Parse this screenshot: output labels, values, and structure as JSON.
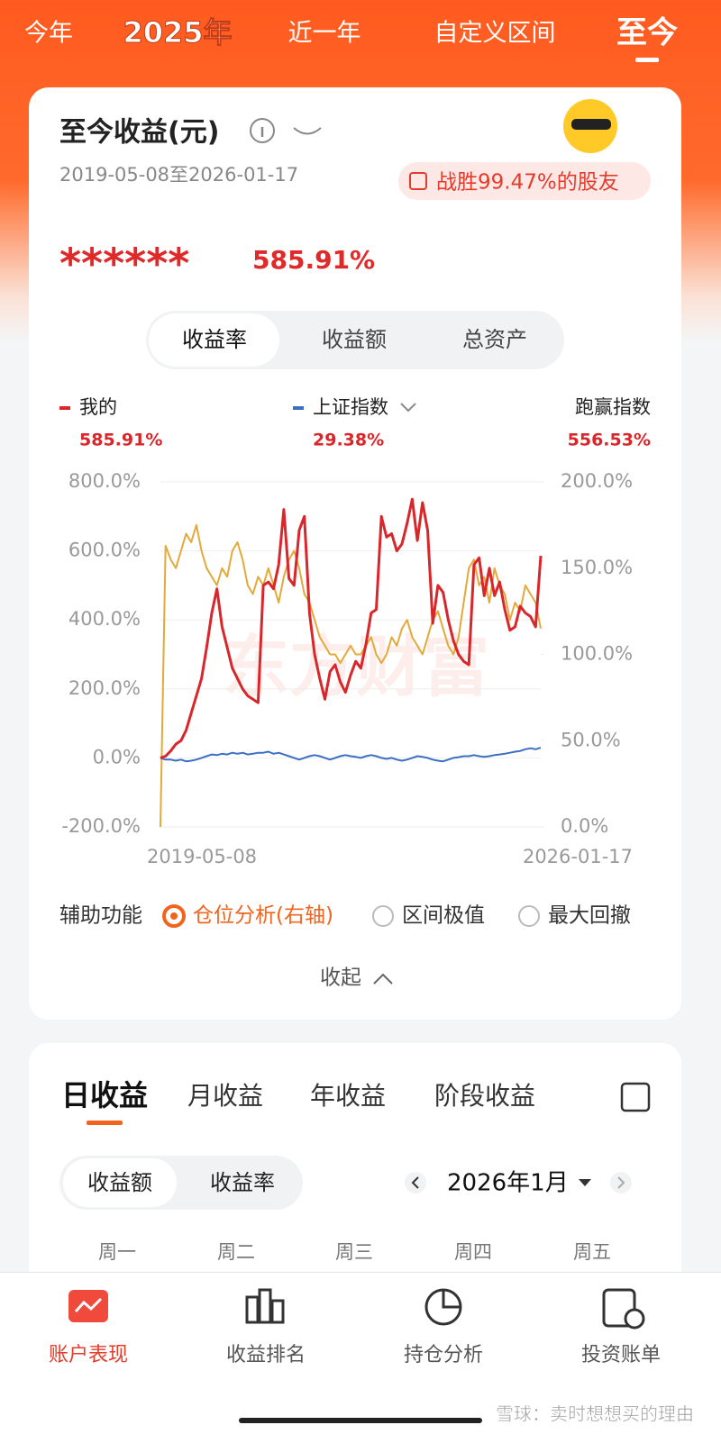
{
  "header_tabs": [
    "今年",
    "2025年",
    "近一年",
    "自定义区间",
    "至今"
  ],
  "selected_header_tab": 4,
  "card": {
    "title": "至今收益(元)",
    "date_range": "2019-05-08至2026-01-17",
    "badge": "战胜99.47%的股友",
    "amount": "******",
    "return": "585.91%",
    "segments": [
      "收益率",
      "收益额",
      "总资产"
    ],
    "selected_segment": 0,
    "legend_values": [
      "585.91%",
      "29.38%"
    ],
    "outperform": {
      "name": "跑赢指数",
      "value": "556.53%"
    }
  },
  "chart_data": {
    "type": "line",
    "watermark": "东方财富",
    "categories": [
      "2019-05-08",
      null,
      null,
      null,
      null,
      null,
      null,
      null,
      null,
      null,
      null,
      null,
      null,
      null,
      null,
      null,
      null,
      null,
      null,
      null,
      null,
      null,
      null,
      null,
      null,
      null,
      null,
      null,
      null,
      null,
      null,
      null,
      null,
      null,
      null,
      null,
      null,
      null,
      null,
      null,
      null,
      null,
      null,
      null,
      null,
      null,
      null,
      null,
      null,
      null,
      null,
      null,
      null,
      null,
      null,
      null,
      null,
      null,
      null,
      null,
      null,
      null,
      null,
      null,
      null,
      null,
      null,
      null,
      null,
      null,
      null,
      null,
      null,
      null,
      "2026-01-17"
    ],
    "series": [
      {
        "name": "我的",
        "color": "#d9262b",
        "values": [
          0,
          5,
          20,
          40,
          50,
          80,
          130,
          180,
          230,
          320,
          420,
          490,
          380,
          320,
          260,
          230,
          200,
          180,
          170,
          160,
          500,
          510,
          490,
          560,
          720,
          520,
          500,
          660,
          700,
          420,
          300,
          230,
          170,
          250,
          270,
          220,
          190,
          240,
          280,
          260,
          330,
          420,
          430,
          700,
          640,
          650,
          600,
          620,
          680,
          750,
          630,
          740,
          660,
          390,
          500,
          480,
          400,
          340,
          300,
          280,
          270,
          560,
          580,
          470,
          550,
          470,
          510,
          430,
          370,
          380,
          440,
          420,
          410,
          380,
          585.91
        ]
      },
      {
        "name": "上证指数",
        "color": "#3a6fc4",
        "values": [
          0,
          -5,
          -5,
          -8,
          -5,
          -10,
          -8,
          -5,
          0,
          5,
          10,
          8,
          12,
          10,
          15,
          12,
          15,
          10,
          12,
          15,
          15,
          18,
          12,
          15,
          10,
          5,
          0,
          -5,
          0,
          5,
          8,
          5,
          0,
          -5,
          0,
          5,
          8,
          5,
          3,
          0,
          5,
          8,
          5,
          0,
          -3,
          0,
          -5,
          -8,
          -5,
          0,
          5,
          3,
          0,
          -5,
          -8,
          -10,
          -5,
          0,
          2,
          5,
          5,
          8,
          5,
          3,
          5,
          8,
          10,
          12,
          15,
          18,
          20,
          25,
          28,
          25,
          29.38
        ]
      },
      {
        "color": "#e3a93a",
        "axis": "y2",
        "values": [
          0,
          163,
          155,
          150,
          160,
          170,
          165,
          175,
          160,
          150,
          145,
          140,
          150,
          145,
          160,
          165,
          155,
          140,
          135,
          145,
          140,
          150,
          140,
          130,
          145,
          155,
          160,
          150,
          135,
          130,
          120,
          110,
          105,
          100,
          100,
          95,
          100,
          105,
          100,
          100,
          105,
          110,
          100,
          95,
          100,
          110,
          105,
          115,
          120,
          110,
          105,
          100,
          110,
          120,
          125,
          115,
          105,
          100,
          110,
          130,
          150,
          155,
          140,
          145,
          130,
          150,
          140,
          135,
          120,
          130,
          125,
          140,
          135,
          130,
          115
        ]
      }
    ],
    "ylim": [
      -200,
      800
    ],
    "yticks": [
      {
        "value": -200,
        "label": "-200.0%"
      },
      {
        "value": 0,
        "label": "0.0%"
      },
      {
        "value": 200,
        "label": "200.0%"
      },
      {
        "value": 400,
        "label": "400.0%"
      },
      {
        "value": 600,
        "label": "600.0%"
      },
      {
        "value": 800,
        "label": "800.0%"
      }
    ],
    "y2lim": [
      0,
      200
    ],
    "y2ticks": [
      {
        "value": 0,
        "label": "0.0%"
      },
      {
        "value": 50,
        "label": "50.0%"
      },
      {
        "value": 100,
        "label": "100.0%"
      },
      {
        "value": 150,
        "label": "150.0%"
      },
      {
        "value": 200,
        "label": "200.0%"
      }
    ],
    "grid": true
  },
  "aux": {
    "label": "辅助功能",
    "options": [
      "仓位分析(右轴)",
      "区间极值",
      "最大回撤"
    ],
    "selected": 0
  },
  "collapse": "收起",
  "daily": {
    "tabs": [
      "日收益",
      "月收益",
      "年收益",
      "阶段收益"
    ],
    "selected_tab": 0,
    "toggle": [
      "收益额",
      "收益率"
    ],
    "selected_toggle": 0,
    "month": "2026年1月",
    "weekdays": [
      "周一",
      "周二",
      "周三",
      "周四",
      "周五"
    ]
  },
  "bottom_nav": {
    "items": [
      "账户表现",
      "收益排名",
      "持仓分析",
      "投资账单"
    ],
    "selected": 0
  },
  "footer_watermark": "雪球：卖时想想买的理由"
}
